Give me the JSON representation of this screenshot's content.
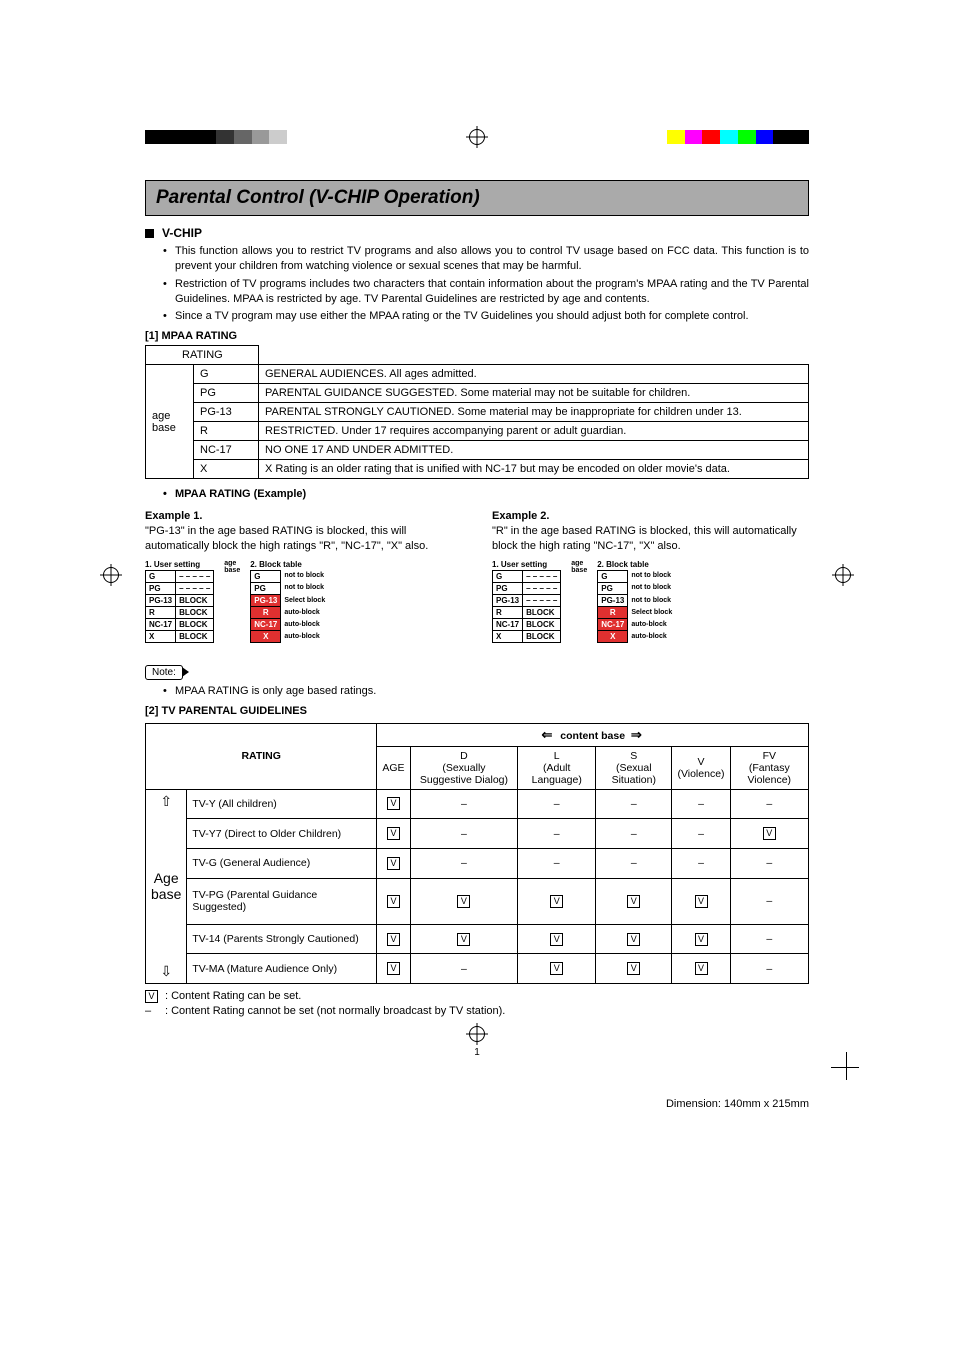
{
  "colorbar_top_left": [
    "#000000",
    "#000000",
    "#000000",
    "#000000",
    "#333333",
    "#666666",
    "#999999",
    "#cccccc",
    "#ffffff"
  ],
  "colorbar_top_right": [
    "#ffffff",
    "#ffff00",
    "#ff00ff",
    "#ff0000",
    "#00ffff",
    "#00ff00",
    "#0000ff",
    "#000000",
    "#000000"
  ],
  "title": "Parental Control (V-CHIP Operation)",
  "vchip_header": "V-CHIP",
  "vchip_bullets": [
    "This function allows you to restrict TV programs and also allows you to control TV usage based on FCC data. This function is to prevent your children from watching violence or sexual scenes that may be harmful.",
    "Restriction of TV programs includes two characters that contain information about the program's MPAA rating and the TV Parental Guidelines. MPAA is restricted by age. TV Parental Guidelines are restricted by age and contents.",
    "Since a TV program may use either the MPAA rating or the TV Guidelines you should adjust both for complete control."
  ],
  "mpaa_section": "[1] MPAA RATING",
  "mpaa_table": {
    "rating_label": "RATING",
    "age_base": "age base",
    "rows": [
      {
        "code": "G",
        "desc": "GENERAL AUDIENCES. All ages admitted."
      },
      {
        "code": "PG",
        "desc": "PARENTAL GUIDANCE SUGGESTED. Some material may not be suitable for children."
      },
      {
        "code": "PG-13",
        "desc": "PARENTAL STRONGLY CAUTIONED.  Some material may be inappropriate for children under 13."
      },
      {
        "code": "R",
        "desc": "RESTRICTED. Under 17 requires accompanying parent or adult guardian."
      },
      {
        "code": "NC-17",
        "desc": "NO ONE 17 AND UNDER ADMITTED."
      },
      {
        "code": "X",
        "desc": "X Rating is an older rating that is unified with NC-17 but may be encoded on older movie's data."
      }
    ]
  },
  "mpaa_example_header": "MPAA RATING (Example)",
  "example1": {
    "title": "Example 1.",
    "text": "\"PG-13\" in the age based RATING is blocked, this will automatically block the high ratings \"R\", \"NC-17\", \"X\" also.",
    "user_label": "1. User setting",
    "block_label": "2. Block table",
    "age_base": "age base",
    "user_rows": [
      {
        "r": "G",
        "v": "– – – – –"
      },
      {
        "r": "PG",
        "v": "– – – – –"
      },
      {
        "r": "PG-13",
        "v": "BLOCK"
      },
      {
        "r": "R",
        "v": "BLOCK"
      },
      {
        "r": "NC-17",
        "v": "BLOCK"
      },
      {
        "r": "X",
        "v": "BLOCK"
      }
    ],
    "block_rows": [
      {
        "r": "G",
        "red": false,
        "note": "not to block"
      },
      {
        "r": "PG",
        "red": false,
        "note": "not to block"
      },
      {
        "r": "PG-13",
        "red": true,
        "note": "Select block"
      },
      {
        "r": "R",
        "red": true,
        "note": "auto-block"
      },
      {
        "r": "NC-17",
        "red": true,
        "note": "auto-block"
      },
      {
        "r": "X",
        "red": true,
        "note": "auto-block"
      }
    ]
  },
  "example2": {
    "title": "Example 2.",
    "text": "\"R\" in the age based RATING is blocked, this will automatically block the high rating \"NC-17\", \"X\" also.",
    "user_label": "1. User setting",
    "block_label": "2. Block table",
    "age_base": "age base",
    "user_rows": [
      {
        "r": "G",
        "v": "– – – – –"
      },
      {
        "r": "PG",
        "v": "– – – – –"
      },
      {
        "r": "PG-13",
        "v": "– – – – –"
      },
      {
        "r": "R",
        "v": "BLOCK"
      },
      {
        "r": "NC-17",
        "v": "BLOCK"
      },
      {
        "r": "X",
        "v": "BLOCK"
      }
    ],
    "block_rows": [
      {
        "r": "G",
        "red": false,
        "note": "not to block"
      },
      {
        "r": "PG",
        "red": false,
        "note": "not to block"
      },
      {
        "r": "PG-13",
        "red": false,
        "note": "not to block"
      },
      {
        "r": "R",
        "red": true,
        "note": "Select block"
      },
      {
        "r": "NC-17",
        "red": true,
        "note": "auto-block"
      },
      {
        "r": "X",
        "red": true,
        "note": "auto-block"
      }
    ]
  },
  "note_label": "Note:",
  "note_text": "MPAA RATING is only age based ratings.",
  "tv_section": "[2] TV PARENTAL GUIDELINES",
  "guidelines": {
    "rating_label": "RATING",
    "content_base": "content base",
    "age_base": "Age base",
    "cols": [
      {
        "h": "AGE"
      },
      {
        "h": "D",
        "sub": "(Sexually Suggestive Dialog)"
      },
      {
        "h": "L",
        "sub": "(Adult Language)"
      },
      {
        "h": "S",
        "sub": "(Sexual Situation)"
      },
      {
        "h": "V",
        "sub": "(Violence)"
      },
      {
        "h": "FV",
        "sub": "(Fantasy Violence)"
      }
    ],
    "rows": [
      {
        "name": "TV-Y (All children)",
        "cells": [
          "V",
          "–",
          "–",
          "–",
          "–",
          "–"
        ]
      },
      {
        "name": "TV-Y7 (Direct to Older Children)",
        "cells": [
          "V",
          "–",
          "–",
          "–",
          "–",
          "V"
        ]
      },
      {
        "name": "TV-G (General Audience)",
        "cells": [
          "V",
          "–",
          "–",
          "–",
          "–",
          "–"
        ]
      },
      {
        "name": "TV-PG (Parental Guidance Suggested)",
        "cells": [
          "V",
          "V",
          "V",
          "V",
          "V",
          "–"
        ]
      },
      {
        "name": "TV-14 (Parents Strongly Cautioned)",
        "cells": [
          "V",
          "V",
          "V",
          "V",
          "V",
          "–"
        ]
      },
      {
        "name": "TV-MA (Mature Audience Only)",
        "cells": [
          "V",
          "–",
          "V",
          "V",
          "V",
          "–"
        ]
      }
    ]
  },
  "legend_v": ": Content Rating can be set.",
  "legend_dash": ": Content Rating cannot be set (not normally broadcast by TV station).",
  "page_number": "1",
  "dimension": "Dimension: 140mm x 215mm"
}
